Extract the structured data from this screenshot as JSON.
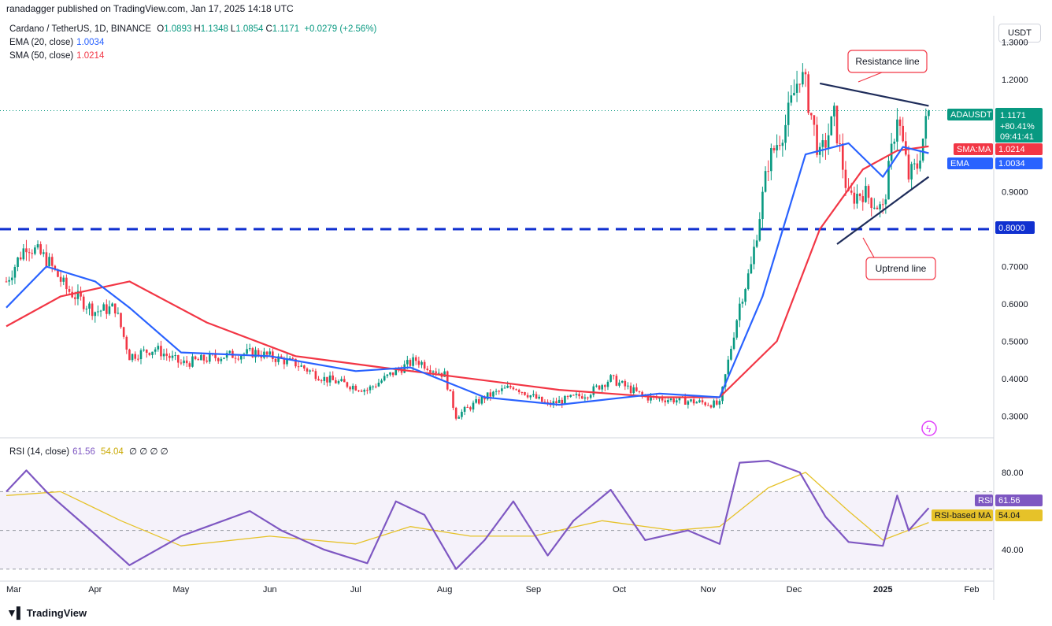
{
  "publish_line": "ranadagger published on TradingView.com, Jan 17, 2025 14:18 UTC",
  "legend": {
    "symbol": "Cardano / TetherUS, 1D, BINANCE",
    "ohlc": [
      {
        "k": "O",
        "v": "1.0893"
      },
      {
        "k": "H",
        "v": "1.1348"
      },
      {
        "k": "L",
        "v": "1.0854"
      },
      {
        "k": "C",
        "v": "1.1171"
      }
    ],
    "change": "+0.0279 (+2.56%)",
    "ema_label": "EMA (20, close)",
    "ema_value": "1.0034",
    "sma_label": "SMA (50, close)",
    "sma_value": "1.0214",
    "rsi_label": "RSI (14, close)",
    "rsi_value": "61.56",
    "rsi_ma_value": "54.04",
    "rsi_extra": "∅ ∅ ∅ ∅"
  },
  "axis_currency": "USDT",
  "badges": {
    "symbol": "ADAUSDT",
    "price": "1.1171",
    "change_pct": "+80.41%",
    "countdown": "09:41:41",
    "sma_tag": "SMA:MA",
    "sma_value": "1.0214",
    "ema_tag": "EMA",
    "ema_value": "1.0034",
    "support_value": "0.8000",
    "rsi_tag": "RSI",
    "rsi_value": "61.56",
    "rsi_ma_tag": "RSI-based MA",
    "rsi_ma_value": "54.04"
  },
  "annotations": {
    "resistance": "Resistance line",
    "uptrend": "Uptrend line"
  },
  "brand": "TradingView",
  "colors": {
    "bull": "#089981",
    "bear": "#f23645",
    "ema": "#2962ff",
    "sma": "#f23645",
    "rsi": "#7e57c2",
    "rsi_ma": "#e6c229",
    "support": "#1030d0",
    "trend": "#1e2c5a"
  },
  "chart_data": [
    {
      "type": "candlestick",
      "title": "Cardano / TetherUS, 1D, BINANCE",
      "ylim": [
        0.25,
        1.35
      ],
      "y_ticks": [
        "1.3000",
        "1.2000",
        "0.9000",
        "0.7000",
        "0.6000",
        "0.5000",
        "0.4000",
        "0.3000"
      ],
      "x_ticks": [
        "Mar",
        "Apr",
        "May",
        "Jun",
        "Jul",
        "Aug",
        "Sep",
        "Oct",
        "Nov",
        "Dec",
        "2025",
        "Feb"
      ],
      "close_series": {
        "x": [
          "2024-03-01",
          "2024-03-08",
          "2024-03-15",
          "2024-03-22",
          "2024-04-01",
          "2024-04-08",
          "2024-04-13",
          "2024-04-22",
          "2024-05-01",
          "2024-05-15",
          "2024-05-27",
          "2024-06-10",
          "2024-06-20",
          "2024-07-05",
          "2024-07-15",
          "2024-07-22",
          "2024-08-01",
          "2024-08-05",
          "2024-08-15",
          "2024-08-25",
          "2024-09-06",
          "2024-09-20",
          "2024-09-28",
          "2024-10-10",
          "2024-10-25",
          "2024-11-05",
          "2024-11-12",
          "2024-11-16",
          "2024-11-22",
          "2024-11-28",
          "2024-12-03",
          "2024-12-05",
          "2024-12-10",
          "2024-12-15",
          "2024-12-20",
          "2024-12-25",
          "2025-01-01",
          "2025-01-06",
          "2025-01-10",
          "2025-01-13",
          "2025-01-17"
        ],
        "y": [
          0.66,
          0.76,
          0.72,
          0.64,
          0.58,
          0.59,
          0.46,
          0.48,
          0.44,
          0.46,
          0.47,
          0.44,
          0.4,
          0.37,
          0.42,
          0.45,
          0.41,
          0.3,
          0.35,
          0.38,
          0.33,
          0.36,
          0.4,
          0.35,
          0.34,
          0.33,
          0.6,
          0.7,
          0.98,
          1.08,
          1.22,
          1.18,
          0.99,
          1.1,
          0.88,
          0.9,
          0.85,
          1.11,
          0.94,
          0.97,
          1.1171
        ]
      },
      "ema20": {
        "x": [
          "2024-03-01",
          "2024-03-15",
          "2024-04-01",
          "2024-04-13",
          "2024-05-01",
          "2024-06-01",
          "2024-07-01",
          "2024-07-20",
          "2024-08-15",
          "2024-09-10",
          "2024-10-15",
          "2024-11-05",
          "2024-11-20",
          "2024-12-05",
          "2024-12-20",
          "2025-01-01",
          "2025-01-08",
          "2025-01-17"
        ],
        "y": [
          0.59,
          0.7,
          0.66,
          0.59,
          0.47,
          0.46,
          0.42,
          0.43,
          0.35,
          0.33,
          0.36,
          0.35,
          0.62,
          1.0,
          1.03,
          0.94,
          1.02,
          1.0034
        ]
      },
      "sma50": {
        "x": [
          "2024-03-01",
          "2024-03-20",
          "2024-04-13",
          "2024-05-10",
          "2024-06-10",
          "2024-07-10",
          "2024-08-10",
          "2024-09-10",
          "2024-10-15",
          "2024-11-05",
          "2024-11-25",
          "2024-12-10",
          "2024-12-25",
          "2025-01-06",
          "2025-01-17"
        ],
        "y": [
          0.54,
          0.62,
          0.66,
          0.55,
          0.46,
          0.43,
          0.4,
          0.37,
          0.35,
          0.35,
          0.5,
          0.8,
          0.96,
          1.01,
          1.0214
        ]
      },
      "horizontal_support": 0.8,
      "resistance_line": {
        "x": [
          "2024-12-10",
          "2025-01-17"
        ],
        "y": [
          1.19,
          1.13
        ]
      },
      "uptrend_line": {
        "x": [
          "2024-12-16",
          "2025-01-17"
        ],
        "y": [
          0.76,
          0.94
        ]
      }
    },
    {
      "type": "line",
      "title": "RSI (14, close)",
      "ylim": [
        25,
        95
      ],
      "y_ticks": [
        "80.00",
        "40.00"
      ],
      "bands": [
        30,
        70
      ],
      "series": [
        {
          "name": "RSI",
          "x": [
            "2024-03-01",
            "2024-03-08",
            "2024-03-15",
            "2024-04-01",
            "2024-04-13",
            "2024-05-01",
            "2024-05-25",
            "2024-06-05",
            "2024-06-20",
            "2024-07-05",
            "2024-07-15",
            "2024-07-25",
            "2024-08-05",
            "2024-08-15",
            "2024-08-25",
            "2024-09-06",
            "2024-09-15",
            "2024-09-28",
            "2024-10-10",
            "2024-10-25",
            "2024-11-05",
            "2024-11-12",
            "2024-11-22",
            "2024-12-03",
            "2024-12-12",
            "2024-12-20",
            "2025-01-01",
            "2025-01-06",
            "2025-01-10",
            "2025-01-17"
          ],
          "y": [
            70,
            81,
            70,
            48,
            32,
            47,
            60,
            50,
            40,
            33,
            65,
            58,
            30,
            45,
            65,
            37,
            55,
            71,
            45,
            50,
            43,
            85,
            86,
            80,
            57,
            44,
            42,
            68,
            50,
            61.56
          ]
        },
        {
          "name": "RSI-based MA",
          "x": [
            "2024-03-01",
            "2024-03-20",
            "2024-04-10",
            "2024-05-01",
            "2024-06-01",
            "2024-07-01",
            "2024-07-20",
            "2024-08-10",
            "2024-09-01",
            "2024-09-25",
            "2024-10-20",
            "2024-11-05",
            "2024-11-22",
            "2024-12-05",
            "2024-12-20",
            "2025-01-01",
            "2025-01-17"
          ],
          "y": [
            68,
            70,
            55,
            42,
            47,
            43,
            52,
            47,
            47,
            55,
            50,
            52,
            72,
            80,
            60,
            45,
            54.04
          ]
        }
      ]
    }
  ]
}
